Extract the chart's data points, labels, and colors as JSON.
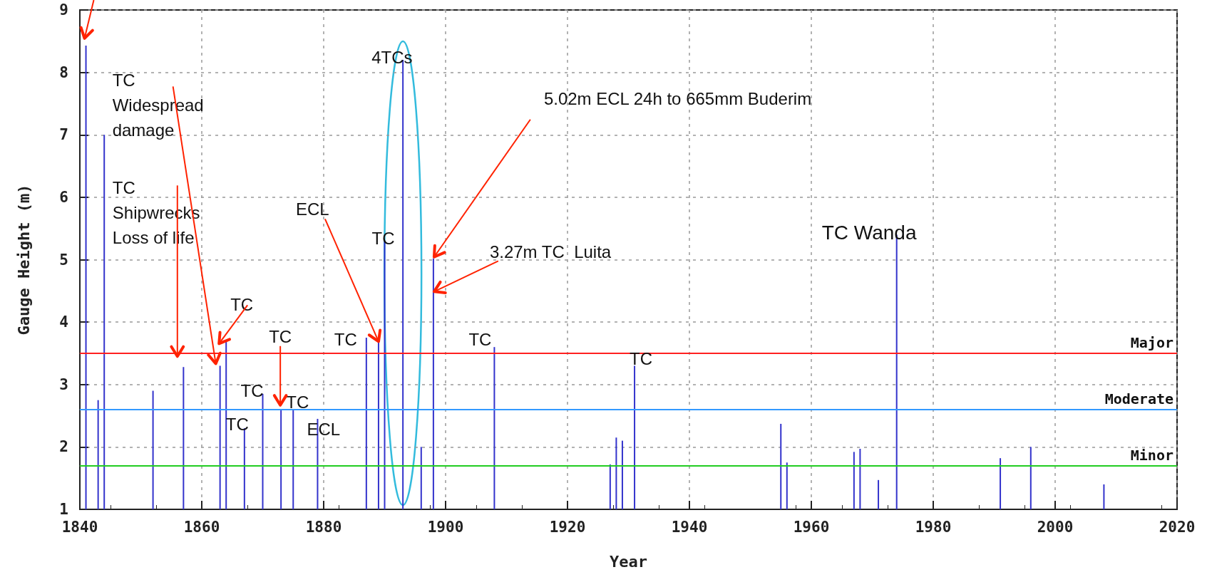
{
  "chart_data": {
    "type": "bar",
    "xlabel": "Year",
    "ylabel": "Gauge Height (m)",
    "x": [
      1841,
      1843,
      1844,
      1852,
      1857,
      1863,
      1864,
      1867,
      1870,
      1873,
      1875,
      1879,
      1887,
      1889,
      1890,
      1893,
      1896,
      1898,
      1908,
      1927,
      1928,
      1929,
      1931,
      1955,
      1956,
      1967,
      1968,
      1971,
      1974,
      1991,
      1996,
      2008
    ],
    "values": [
      8.43,
      2.75,
      7.0,
      2.9,
      3.28,
      3.3,
      3.7,
      2.3,
      2.85,
      2.6,
      2.6,
      2.45,
      3.75,
      3.7,
      5.3,
      8.2,
      2.0,
      5.02,
      3.6,
      1.72,
      2.15,
      2.1,
      3.3,
      2.37,
      1.75,
      1.92,
      1.97,
      1.47,
      5.4,
      1.82,
      2.0,
      1.4
    ],
    "color": "#3333cc",
    "xlim": [
      1840,
      2020
    ],
    "xticks": [
      1840,
      1860,
      1880,
      1900,
      1920,
      1940,
      1960,
      1980,
      2000,
      2020
    ],
    "ylim": [
      1,
      9
    ],
    "yticks": [
      1,
      2,
      3,
      4,
      5,
      6,
      7,
      8,
      9
    ],
    "grid": true,
    "ref_lines": [
      {
        "axis": "y",
        "value": 3.5,
        "label": "Major",
        "color": "#ff2020"
      },
      {
        "axis": "y",
        "value": 2.6,
        "label": "Moderate",
        "color": "#3399ff"
      },
      {
        "axis": "y",
        "value": 1.7,
        "label": "Minor",
        "color": "#22cc22"
      }
    ],
    "annotations": [
      {
        "text": "TC\nWidespread\ndamage",
        "x": 1863,
        "y": 3.3
      },
      {
        "text": "TC\nShipwrecks\nLoss of life",
        "x": 1856,
        "y": 3.45
      },
      {
        "text": "TC",
        "x": 1864,
        "y": 3.7
      },
      {
        "text": "TC",
        "x": 1867,
        "y": 2.3
      },
      {
        "text": "TC",
        "x": 1870,
        "y": 2.85
      },
      {
        "text": "TC",
        "x": 1873,
        "y": 2.6
      },
      {
        "text": "TC",
        "x": 1875,
        "y": 2.6
      },
      {
        "text": "ECL",
        "x": 1879,
        "y": 2.45
      },
      {
        "text": "TC",
        "x": 1887,
        "y": 3.75
      },
      {
        "text": "ECL",
        "x": 1889,
        "y": 3.7
      },
      {
        "text": "TC",
        "x": 1890,
        "y": 5.3
      },
      {
        "text": "4TCs",
        "x": 1893,
        "y": 8.2
      },
      {
        "text": "5.02m ECL 24h to 665mm Buderim",
        "x": 1898,
        "y": 5.02
      },
      {
        "text": "3.27m TC  Luita",
        "x": 1898,
        "y": 4.5
      },
      {
        "text": "TC",
        "x": 1908,
        "y": 3.6
      },
      {
        "text": "TC",
        "x": 1931,
        "y": 3.3
      },
      {
        "text": "TC Wanda",
        "x": 1974,
        "y": 5.4
      }
    ]
  }
}
